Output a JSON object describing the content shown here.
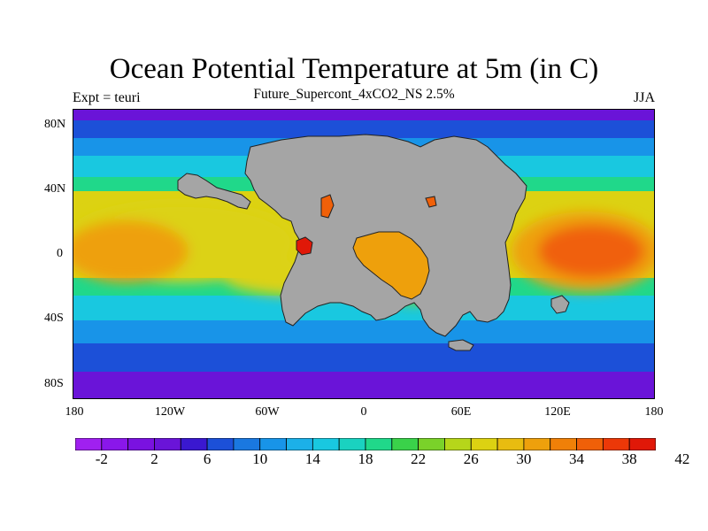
{
  "title": "Ocean Potential Temperature at 5m (in C)",
  "subtitle": "Future_Supercont_4xCO2_NS 2.5%",
  "left_label": "Expt = teuri",
  "right_label": "JJA",
  "y_ticks": [
    "80N",
    "40N",
    "0",
    "40S",
    "80S"
  ],
  "x_ticks": [
    "180",
    "120W",
    "60W",
    "0",
    "60E",
    "120E",
    "180"
  ],
  "colorbar": {
    "labels": [
      "-2",
      "2",
      "6",
      "10",
      "14",
      "18",
      "22",
      "26",
      "30",
      "34",
      "38",
      "42"
    ],
    "colors": [
      "#a020f0",
      "#8a17ea",
      "#7a12e0",
      "#6a14d8",
      "#3a18d0",
      "#1c50d8",
      "#1a78e0",
      "#1894e8",
      "#1cb0e8",
      "#19c8e0",
      "#1ad2c0",
      "#20d88a",
      "#3ad24a",
      "#7ad22a",
      "#b6d61a",
      "#dcd212",
      "#e8bc10",
      "#eea00c",
      "#f08008",
      "#f06008",
      "#ec3808",
      "#e01808"
    ]
  },
  "map_colors": {
    "land": "#a5a5a5",
    "polar": "#6a14d8",
    "cold": "#1c50d8",
    "cool": "#1894e8",
    "mild": "#19c8e0",
    "temperate": "#20d88a",
    "warm": "#7ad22a",
    "hot": "#dcd212",
    "hotter": "#eea00c",
    "hottest": "#f06008",
    "lake": "#e01808"
  }
}
